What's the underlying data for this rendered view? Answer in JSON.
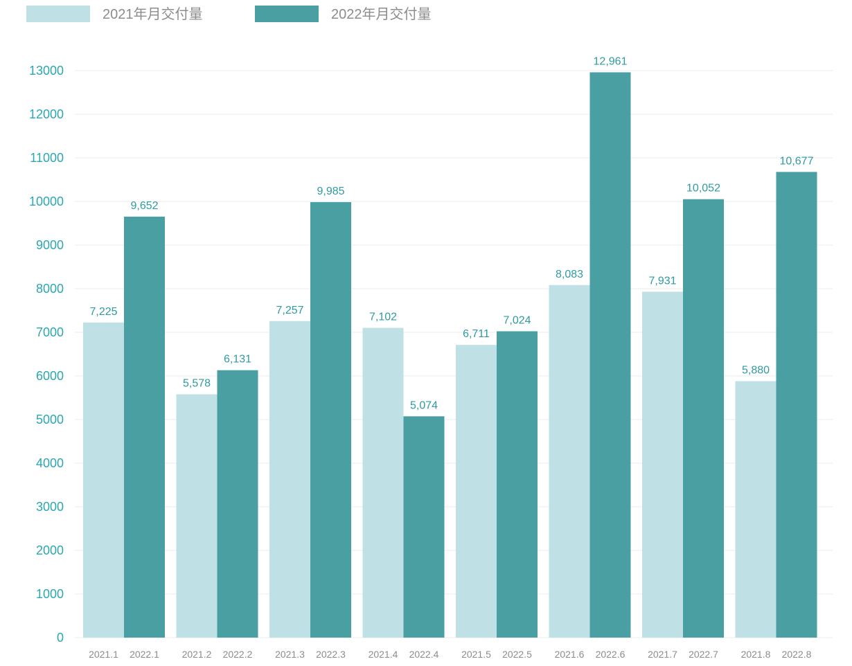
{
  "colors": {
    "series_2021": "#bfe0e5",
    "series_2022": "#4a9fa2",
    "grid": "#e8ecee",
    "ytick": "#2aa7b0",
    "xtick": "#8c8c8c",
    "dlabel": "#2f9aa2",
    "legend_text": "#8c8c8c"
  },
  "chart_data": {
    "type": "bar",
    "grid": true,
    "legend_position": "top-left",
    "ylim": [
      0,
      13000
    ],
    "yticks": [
      0,
      1000,
      2000,
      3000,
      4000,
      5000,
      6000,
      7000,
      8000,
      9000,
      10000,
      11000,
      12000,
      13000
    ],
    "months": [
      "1",
      "2",
      "3",
      "4",
      "5",
      "6",
      "7",
      "8"
    ],
    "series": [
      {
        "name": "2021年月交付量",
        "color": "#bfe0e5",
        "categories": [
          "2021.1",
          "2021.2",
          "2021.3",
          "2021.4",
          "2021.5",
          "2021.6",
          "2021.7",
          "2021.8"
        ],
        "values": [
          7225,
          5578,
          7257,
          7102,
          6711,
          8083,
          7931,
          5880
        ],
        "labels": [
          "7,225",
          "5,578",
          "7,257",
          "7,102",
          "6,711",
          "8,083",
          "7,931",
          "5,880"
        ]
      },
      {
        "name": "2022年月交付量",
        "color": "#4a9fa2",
        "categories": [
          "2022.1",
          "2022.2",
          "2022.3",
          "2022.4",
          "2022.5",
          "2022.6",
          "2022.7",
          "2022.8"
        ],
        "values": [
          9652,
          6131,
          9985,
          5074,
          7024,
          12961,
          10052,
          10677
        ],
        "labels": [
          "9,652",
          "6,131",
          "9,985",
          "5,074",
          "7,024",
          "12,961",
          "10,052",
          "10,677"
        ]
      }
    ]
  }
}
